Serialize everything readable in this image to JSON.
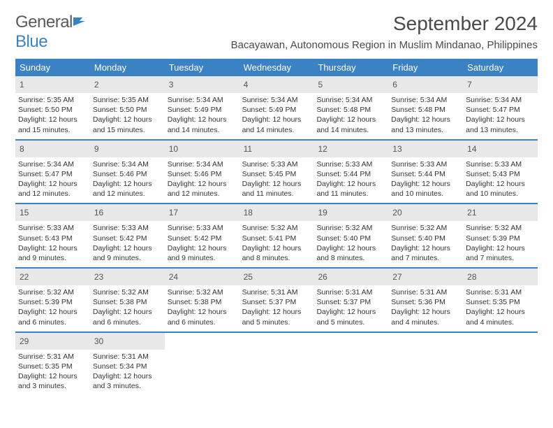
{
  "logo": {
    "general": "General",
    "blue": "Blue"
  },
  "title": "September 2024",
  "location": "Bacayawan, Autonomous Region in Muslim Mindanao, Philippines",
  "colors": {
    "header_bg": "#3b82c4",
    "header_text": "#ffffff",
    "daynum_bg": "#e8e8e8",
    "border": "#3b82c4",
    "body_text": "#333333",
    "title_text": "#4a4a4a",
    "logo_gray": "#5a5a5a",
    "logo_blue": "#3b82c4",
    "page_bg": "#ffffff"
  },
  "typography": {
    "title_fontsize": 28,
    "location_fontsize": 15,
    "dow_fontsize": 13,
    "daynum_fontsize": 12,
    "daytext_fontsize": 10.5,
    "logo_fontsize": 24
  },
  "dow": [
    "Sunday",
    "Monday",
    "Tuesday",
    "Wednesday",
    "Thursday",
    "Friday",
    "Saturday"
  ],
  "weeks": [
    [
      {
        "n": "1",
        "sr": "5:35 AM",
        "ss": "5:50 PM",
        "dl": "12 hours and 15 minutes."
      },
      {
        "n": "2",
        "sr": "5:35 AM",
        "ss": "5:50 PM",
        "dl": "12 hours and 15 minutes."
      },
      {
        "n": "3",
        "sr": "5:34 AM",
        "ss": "5:49 PM",
        "dl": "12 hours and 14 minutes."
      },
      {
        "n": "4",
        "sr": "5:34 AM",
        "ss": "5:49 PM",
        "dl": "12 hours and 14 minutes."
      },
      {
        "n": "5",
        "sr": "5:34 AM",
        "ss": "5:48 PM",
        "dl": "12 hours and 14 minutes."
      },
      {
        "n": "6",
        "sr": "5:34 AM",
        "ss": "5:48 PM",
        "dl": "12 hours and 13 minutes."
      },
      {
        "n": "7",
        "sr": "5:34 AM",
        "ss": "5:47 PM",
        "dl": "12 hours and 13 minutes."
      }
    ],
    [
      {
        "n": "8",
        "sr": "5:34 AM",
        "ss": "5:47 PM",
        "dl": "12 hours and 12 minutes."
      },
      {
        "n": "9",
        "sr": "5:34 AM",
        "ss": "5:46 PM",
        "dl": "12 hours and 12 minutes."
      },
      {
        "n": "10",
        "sr": "5:34 AM",
        "ss": "5:46 PM",
        "dl": "12 hours and 12 minutes."
      },
      {
        "n": "11",
        "sr": "5:33 AM",
        "ss": "5:45 PM",
        "dl": "12 hours and 11 minutes."
      },
      {
        "n": "12",
        "sr": "5:33 AM",
        "ss": "5:44 PM",
        "dl": "12 hours and 11 minutes."
      },
      {
        "n": "13",
        "sr": "5:33 AM",
        "ss": "5:44 PM",
        "dl": "12 hours and 10 minutes."
      },
      {
        "n": "14",
        "sr": "5:33 AM",
        "ss": "5:43 PM",
        "dl": "12 hours and 10 minutes."
      }
    ],
    [
      {
        "n": "15",
        "sr": "5:33 AM",
        "ss": "5:43 PM",
        "dl": "12 hours and 9 minutes."
      },
      {
        "n": "16",
        "sr": "5:33 AM",
        "ss": "5:42 PM",
        "dl": "12 hours and 9 minutes."
      },
      {
        "n": "17",
        "sr": "5:33 AM",
        "ss": "5:42 PM",
        "dl": "12 hours and 9 minutes."
      },
      {
        "n": "18",
        "sr": "5:32 AM",
        "ss": "5:41 PM",
        "dl": "12 hours and 8 minutes."
      },
      {
        "n": "19",
        "sr": "5:32 AM",
        "ss": "5:40 PM",
        "dl": "12 hours and 8 minutes."
      },
      {
        "n": "20",
        "sr": "5:32 AM",
        "ss": "5:40 PM",
        "dl": "12 hours and 7 minutes."
      },
      {
        "n": "21",
        "sr": "5:32 AM",
        "ss": "5:39 PM",
        "dl": "12 hours and 7 minutes."
      }
    ],
    [
      {
        "n": "22",
        "sr": "5:32 AM",
        "ss": "5:39 PM",
        "dl": "12 hours and 6 minutes."
      },
      {
        "n": "23",
        "sr": "5:32 AM",
        "ss": "5:38 PM",
        "dl": "12 hours and 6 minutes."
      },
      {
        "n": "24",
        "sr": "5:32 AM",
        "ss": "5:38 PM",
        "dl": "12 hours and 6 minutes."
      },
      {
        "n": "25",
        "sr": "5:31 AM",
        "ss": "5:37 PM",
        "dl": "12 hours and 5 minutes."
      },
      {
        "n": "26",
        "sr": "5:31 AM",
        "ss": "5:37 PM",
        "dl": "12 hours and 5 minutes."
      },
      {
        "n": "27",
        "sr": "5:31 AM",
        "ss": "5:36 PM",
        "dl": "12 hours and 4 minutes."
      },
      {
        "n": "28",
        "sr": "5:31 AM",
        "ss": "5:35 PM",
        "dl": "12 hours and 4 minutes."
      }
    ],
    [
      {
        "n": "29",
        "sr": "5:31 AM",
        "ss": "5:35 PM",
        "dl": "12 hours and 3 minutes."
      },
      {
        "n": "30",
        "sr": "5:31 AM",
        "ss": "5:34 PM",
        "dl": "12 hours and 3 minutes."
      },
      null,
      null,
      null,
      null,
      null
    ]
  ],
  "labels": {
    "sunrise": "Sunrise:",
    "sunset": "Sunset:",
    "daylight": "Daylight:"
  }
}
